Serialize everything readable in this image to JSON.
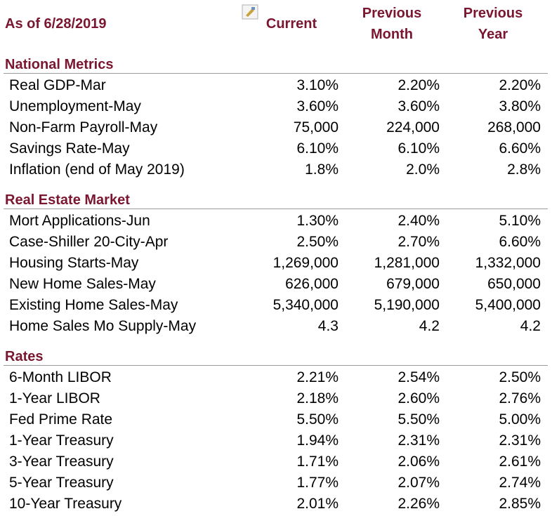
{
  "header": {
    "as_of": "As of 6/28/2019",
    "columns": [
      [
        "Current"
      ],
      [
        "Previous",
        "Month"
      ],
      [
        "Previous",
        "Year"
      ]
    ]
  },
  "sections": [
    {
      "title": "National Metrics",
      "rows": [
        [
          "Real GDP-Mar",
          "3.10%",
          "2.20%",
          "2.20%"
        ],
        [
          "Unemployment-May",
          "3.60%",
          "3.60%",
          "3.80%"
        ],
        [
          "Non-Farm Payroll-May",
          "75,000",
          "224,000",
          "268,000"
        ],
        [
          "Savings Rate-May",
          "6.10%",
          "6.10%",
          "6.60%"
        ],
        [
          "Inflation (end of May 2019)",
          "1.8%",
          "2.0%",
          "2.8%"
        ]
      ]
    },
    {
      "title": "Real Estate Market",
      "rows": [
        [
          "Mort Applications-Jun",
          "1.30%",
          "2.40%",
          "5.10%"
        ],
        [
          "Case-Shiller 20-City-Apr",
          "2.50%",
          "2.70%",
          "6.60%"
        ],
        [
          "Housing Starts-May",
          "1,269,000",
          "1,281,000",
          "1,332,000"
        ],
        [
          "New Home Sales-May",
          "626,000",
          "679,000",
          "650,000"
        ],
        [
          "Existing Home Sales-May",
          "5,340,000",
          "5,190,000",
          "5,400,000"
        ],
        [
          "Home Sales Mo Supply-May",
          "4.3",
          "4.2",
          "4.2"
        ]
      ]
    },
    {
      "title": "Rates",
      "rows": [
        [
          "6-Month LIBOR",
          "2.21%",
          "2.54%",
          "2.50%"
        ],
        [
          "1-Year LIBOR",
          "2.18%",
          "2.60%",
          "2.76%"
        ],
        [
          "Fed Prime Rate",
          "5.50%",
          "5.50%",
          "5.00%"
        ],
        [
          "1-Year Treasury",
          "1.94%",
          "2.31%",
          "2.31%"
        ],
        [
          "3-Year Treasury",
          "1.71%",
          "2.06%",
          "2.61%"
        ],
        [
          "5-Year Treasury",
          "1.77%",
          "2.07%",
          "2.74%"
        ],
        [
          "10-Year Treasury",
          "2.01%",
          "2.26%",
          "2.85%"
        ]
      ]
    }
  ]
}
